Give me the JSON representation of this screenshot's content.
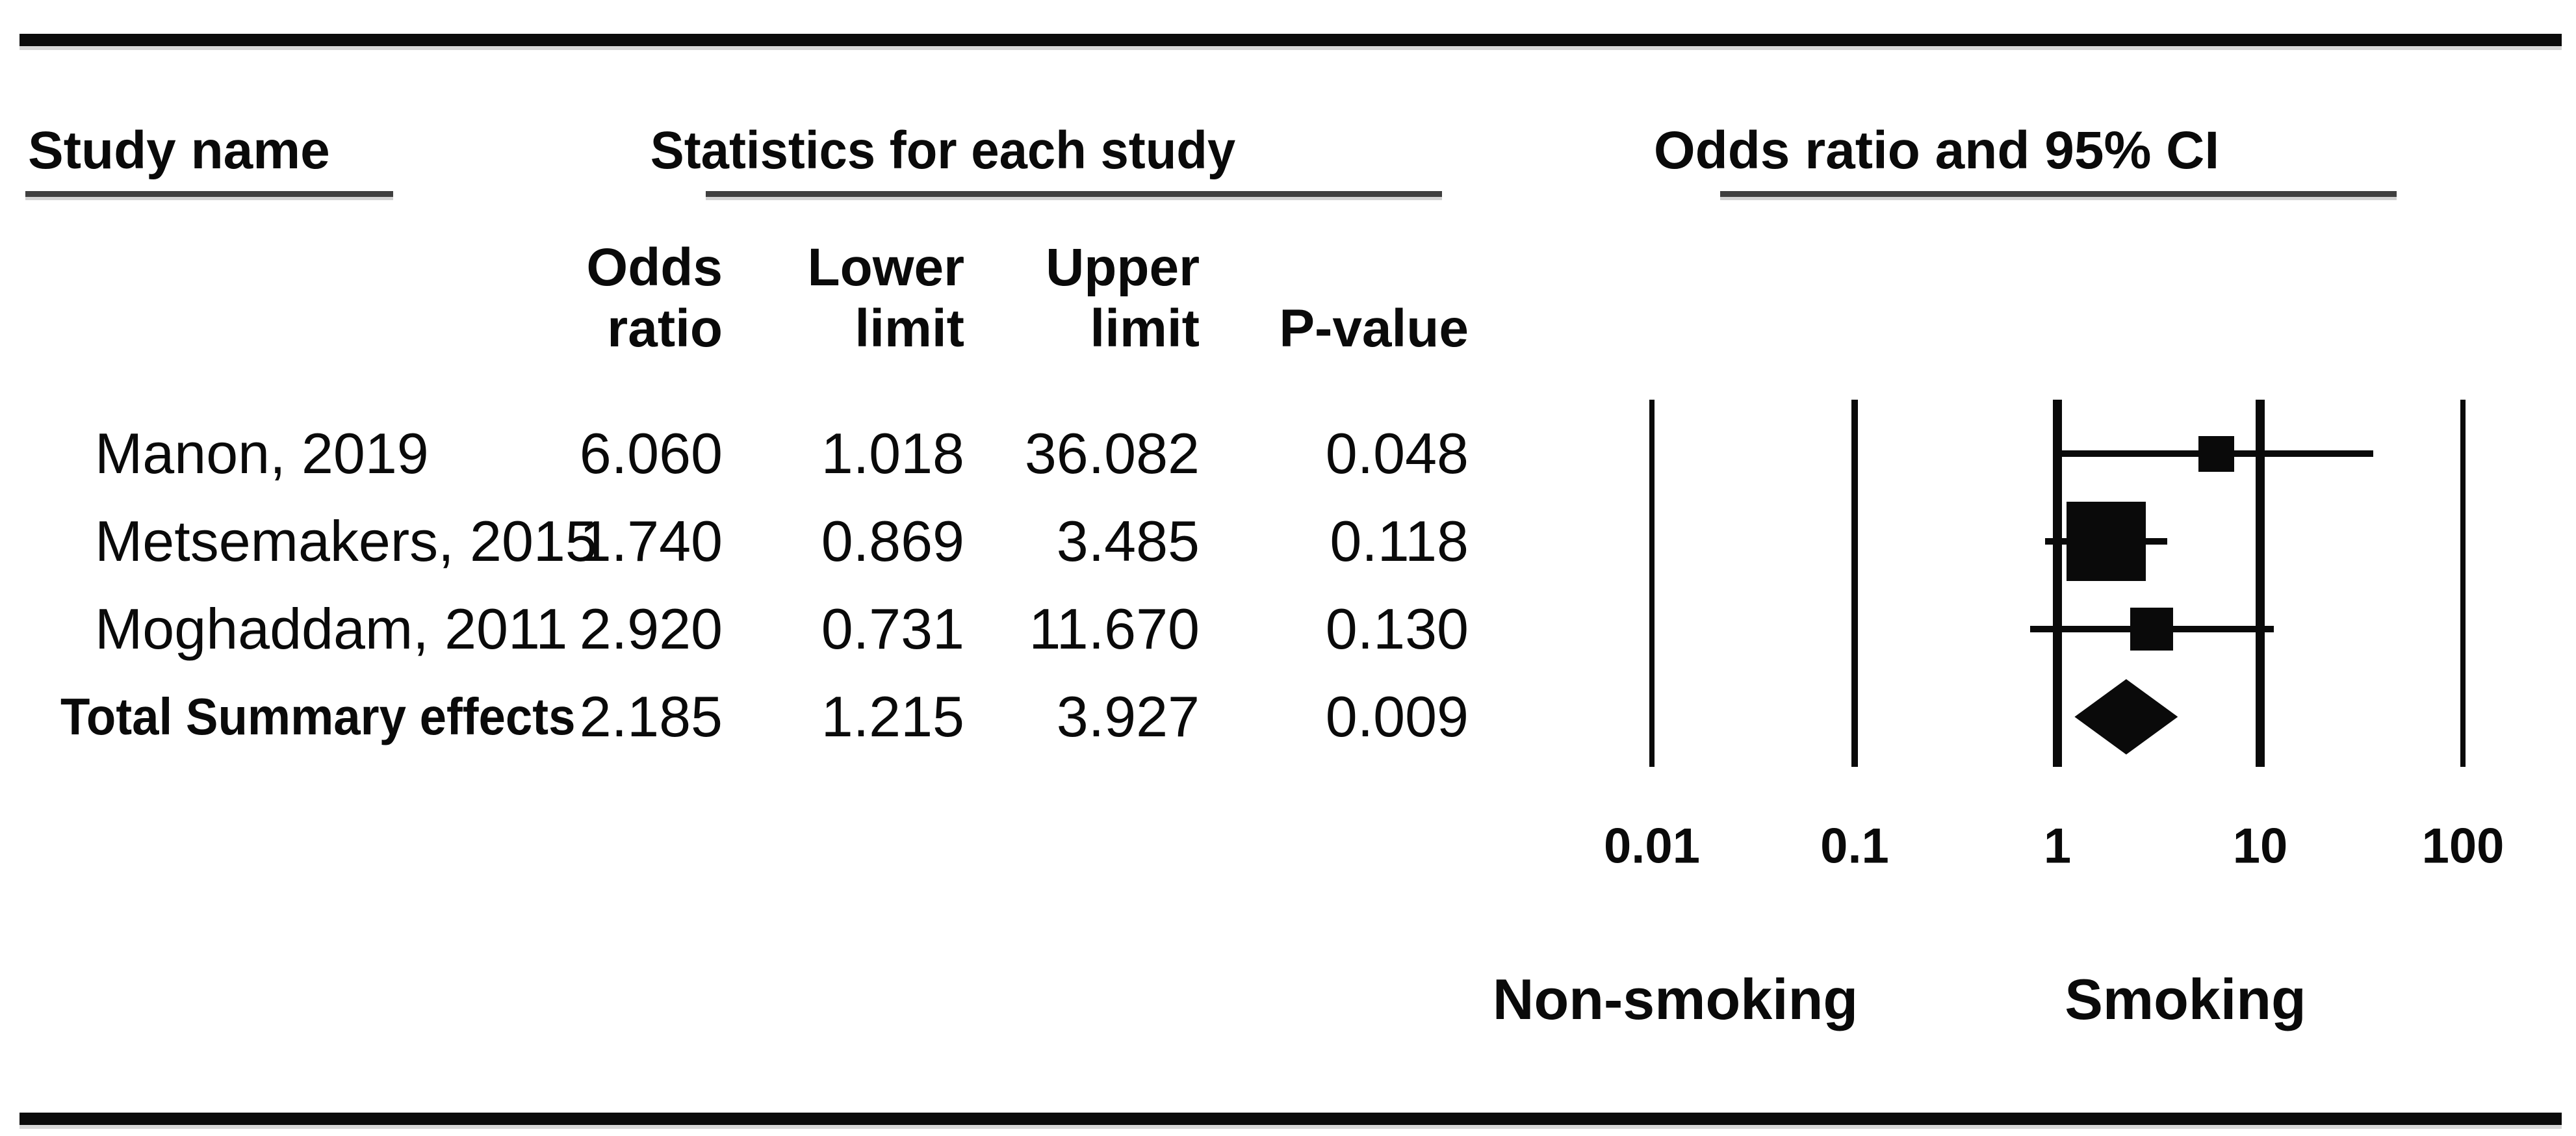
{
  "headers": {
    "study_name": "Study name",
    "stats": "Statistics for each study",
    "plot": "Odds ratio and 95% CI"
  },
  "subheaders": {
    "odds_l1": "Odds",
    "odds_l2": "ratio",
    "lower_l1": "Lower",
    "lower_l2": "limit",
    "upper_l1": "Upper",
    "upper_l2": "limit",
    "pvalue": "P-value"
  },
  "table": {
    "rows": [
      {
        "name": "Manon, 2019",
        "or": "6.060",
        "lower": "1.018",
        "upper": "36.082",
        "p": "0.048"
      },
      {
        "name": "Metsemakers, 2015",
        "or": "1.740",
        "lower": "0.869",
        "upper": "3.485",
        "p": "0.118"
      },
      {
        "name": "Moghaddam, 2011",
        "or": "2.920",
        "lower": "0.731",
        "upper": "11.670",
        "p": "0.130"
      },
      {
        "name": "Total Summary effects",
        "or": "2.185",
        "lower": "1.215",
        "upper": "3.927",
        "p": "0.009"
      }
    ]
  },
  "axis": {
    "tick_labels": [
      "0.01",
      "0.1",
      "1",
      "10",
      "100"
    ]
  },
  "group_labels": {
    "left": "Non-smoking",
    "right": "Smoking"
  },
  "colors": {
    "ink": "#0a0a0a",
    "underline": "#3f3f3f",
    "underline_shadow": "#d3d3d3"
  },
  "chart_data": {
    "type": "forest",
    "title": "Odds ratio and 95% CI",
    "x_scale": "log10",
    "x_ticks": [
      0.01,
      0.1,
      1,
      10,
      100
    ],
    "x_range": [
      0.01,
      100
    ],
    "grid": "vertical-reference-lines",
    "studies": [
      {
        "label": "Manon, 2019",
        "or": 6.06,
        "ci_low": 1.018,
        "ci_high": 36.082,
        "p": 0.048,
        "marker_px": 55
      },
      {
        "label": "Metsemakers, 2015",
        "or": 1.74,
        "ci_low": 0.869,
        "ci_high": 3.485,
        "p": 0.118,
        "marker_px": 122
      },
      {
        "label": "Moghaddam, 2011",
        "or": 2.92,
        "ci_low": 0.731,
        "ci_high": 11.67,
        "p": 0.13,
        "marker_px": 66
      }
    ],
    "summary": {
      "label": "Total Summary effects",
      "or": 2.185,
      "ci_low": 1.215,
      "ci_high": 3.927,
      "p": 0.009
    },
    "direction_labels": {
      "favors_left": "Non-smoking",
      "favors_right": "Smoking"
    }
  }
}
